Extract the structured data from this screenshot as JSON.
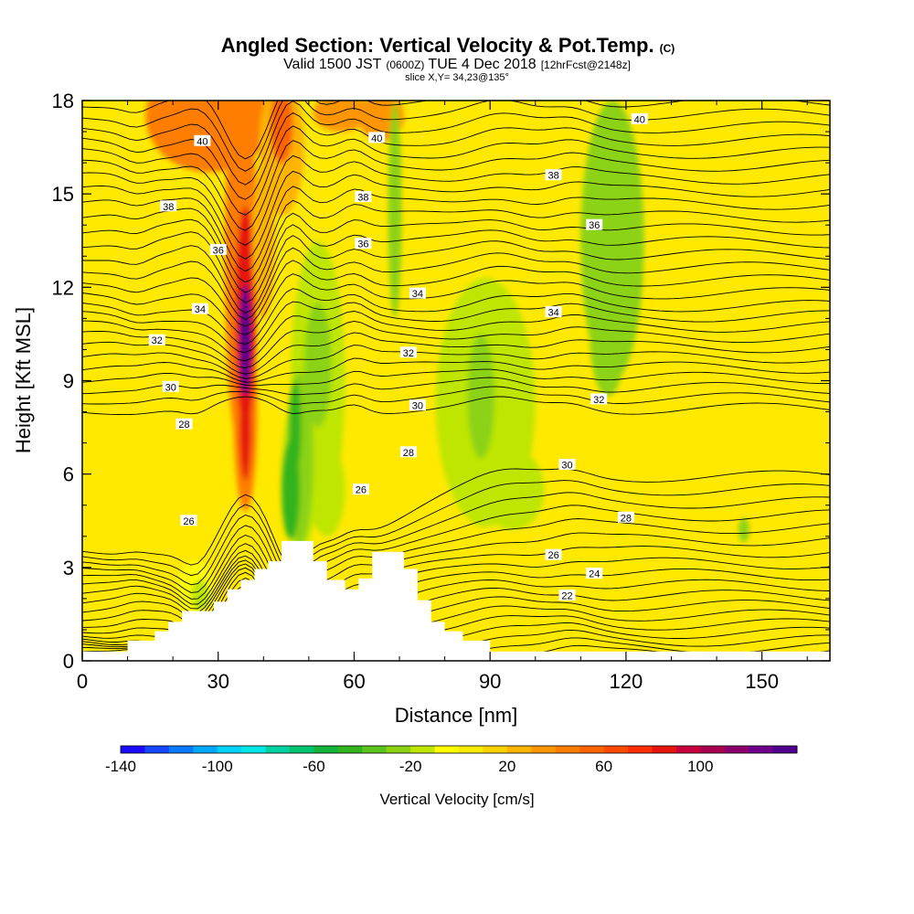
{
  "header": {
    "title_main": "Angled Section: Vertical Velocity & Pot.Temp.",
    "title_unit": "(C)",
    "valid_prefix": "Valid 1500 JST",
    "valid_z": "(0600Z)",
    "valid_date": "TUE 4 Dec 2018",
    "fcst": "[12hrFcst@2148z]",
    "slice": "slice X,Y= 34,23@135°"
  },
  "colorbar": {
    "title": "Vertical Velocity [cm/s]",
    "tick_labels": [
      "-140",
      "-100",
      "-60",
      "-20",
      "20",
      "60",
      "100"
    ],
    "tick_values": [
      -140,
      -100,
      -60,
      -20,
      20,
      60,
      100
    ],
    "range": [
      -140,
      140
    ],
    "colors": [
      "#1a0aff",
      "#1446ff",
      "#0a78ff",
      "#00a8ff",
      "#00d2ff",
      "#00e6e6",
      "#00d2a0",
      "#00c36e",
      "#14b43c",
      "#32b41e",
      "#5ac31e",
      "#8cd214",
      "#bee600",
      "#ffff00",
      "#ffeb00",
      "#ffd200",
      "#ffb400",
      "#ff9600",
      "#ff7d00",
      "#ff6400",
      "#ff4b00",
      "#ff2d00",
      "#e6140a",
      "#c8003c",
      "#aa0050",
      "#8c006e",
      "#6e008c",
      "#50008c"
    ]
  },
  "chart_data": {
    "type": "contour",
    "xlabel": "Distance [nm]",
    "ylabel": "Height [Kft MSL]",
    "xlim": [
      0,
      165
    ],
    "ylim": [
      0,
      18
    ],
    "xticks": [
      0,
      30,
      60,
      90,
      120,
      150
    ],
    "yticks": [
      0,
      3,
      6,
      9,
      12,
      15,
      18
    ],
    "shaded_field": "Vertical Velocity [cm/s]",
    "contour_field": "Pot.Temp. (C)",
    "contour_levels": [
      22,
      24,
      26,
      28,
      30,
      32,
      34,
      36,
      38,
      40
    ],
    "velocity_features": [
      {
        "x": 36,
        "y": 10.5,
        "value": 130
      },
      {
        "x": 42,
        "y": 17,
        "value": 55
      },
      {
        "x": 66,
        "y": 17.5,
        "value": 30
      },
      {
        "x": 47,
        "y": 6.5,
        "value": -45
      },
      {
        "x": 51,
        "y": 9,
        "value": -25
      },
      {
        "x": 69,
        "y": 15,
        "value": -25
      },
      {
        "x": 88,
        "y": 8.5,
        "value": -25
      },
      {
        "x": 117,
        "y": 13.5,
        "value": -20
      },
      {
        "x": 26,
        "y": 2.2,
        "value": -25
      }
    ],
    "contour_labels": [
      {
        "text": "40",
        "x": 26.5,
        "y": 16.7
      },
      {
        "text": "40",
        "x": 65,
        "y": 16.8
      },
      {
        "text": "40",
        "x": 123,
        "y": 17.4
      },
      {
        "text": "38",
        "x": 19,
        "y": 14.6
      },
      {
        "text": "38",
        "x": 62,
        "y": 14.9
      },
      {
        "text": "38",
        "x": 104,
        "y": 15.6
      },
      {
        "text": "36",
        "x": 30,
        "y": 13.2
      },
      {
        "text": "36",
        "x": 62,
        "y": 13.4
      },
      {
        "text": "36",
        "x": 113,
        "y": 14.0
      },
      {
        "text": "34",
        "x": 26,
        "y": 11.3
      },
      {
        "text": "34",
        "x": 74,
        "y": 11.8
      },
      {
        "text": "34",
        "x": 104,
        "y": 11.2
      },
      {
        "text": "32",
        "x": 16.5,
        "y": 10.3
      },
      {
        "text": "32",
        "x": 72,
        "y": 9.9
      },
      {
        "text": "32",
        "x": 114,
        "y": 8.4
      },
      {
        "text": "30",
        "x": 19.5,
        "y": 8.8
      },
      {
        "text": "30",
        "x": 74,
        "y": 8.2
      },
      {
        "text": "30",
        "x": 107,
        "y": 6.3
      },
      {
        "text": "28",
        "x": 22.5,
        "y": 7.6
      },
      {
        "text": "28",
        "x": 72,
        "y": 6.7
      },
      {
        "text": "28",
        "x": 120,
        "y": 4.6
      },
      {
        "text": "26",
        "x": 23.5,
        "y": 4.5
      },
      {
        "text": "26",
        "x": 61.5,
        "y": 5.5
      },
      {
        "text": "26",
        "x": 104,
        "y": 3.4
      },
      {
        "text": "24",
        "x": 113,
        "y": 2.8
      },
      {
        "text": "22",
        "x": 107,
        "y": 2.1
      }
    ],
    "terrain": [
      [
        0,
        0.3
      ],
      [
        10,
        0.3
      ],
      [
        10,
        0.65
      ],
      [
        16,
        0.65
      ],
      [
        16,
        0.95
      ],
      [
        19,
        0.95
      ],
      [
        19,
        1.25
      ],
      [
        22,
        1.25
      ],
      [
        22,
        1.6
      ],
      [
        29,
        1.6
      ],
      [
        29,
        1.9
      ],
      [
        32,
        1.9
      ],
      [
        32,
        2.3
      ],
      [
        35,
        2.3
      ],
      [
        35,
        2.6
      ],
      [
        38,
        2.6
      ],
      [
        38,
        2.95
      ],
      [
        41,
        2.95
      ],
      [
        41,
        3.2
      ],
      [
        44,
        3.2
      ],
      [
        44,
        3.85
      ],
      [
        51,
        3.85
      ],
      [
        51,
        3.2
      ],
      [
        54,
        3.2
      ],
      [
        54,
        2.6
      ],
      [
        58,
        2.6
      ],
      [
        58,
        2.3
      ],
      [
        61,
        2.3
      ],
      [
        61,
        2.65
      ],
      [
        64,
        2.65
      ],
      [
        64,
        3.5
      ],
      [
        71,
        3.5
      ],
      [
        71,
        2.95
      ],
      [
        74,
        2.95
      ],
      [
        74,
        1.95
      ],
      [
        77,
        1.95
      ],
      [
        77,
        1.25
      ],
      [
        80,
        1.25
      ],
      [
        80,
        0.95
      ],
      [
        84,
        0.95
      ],
      [
        84,
        0.65
      ],
      [
        90,
        0.65
      ],
      [
        90,
        0.3
      ],
      [
        165,
        0.3
      ]
    ]
  }
}
